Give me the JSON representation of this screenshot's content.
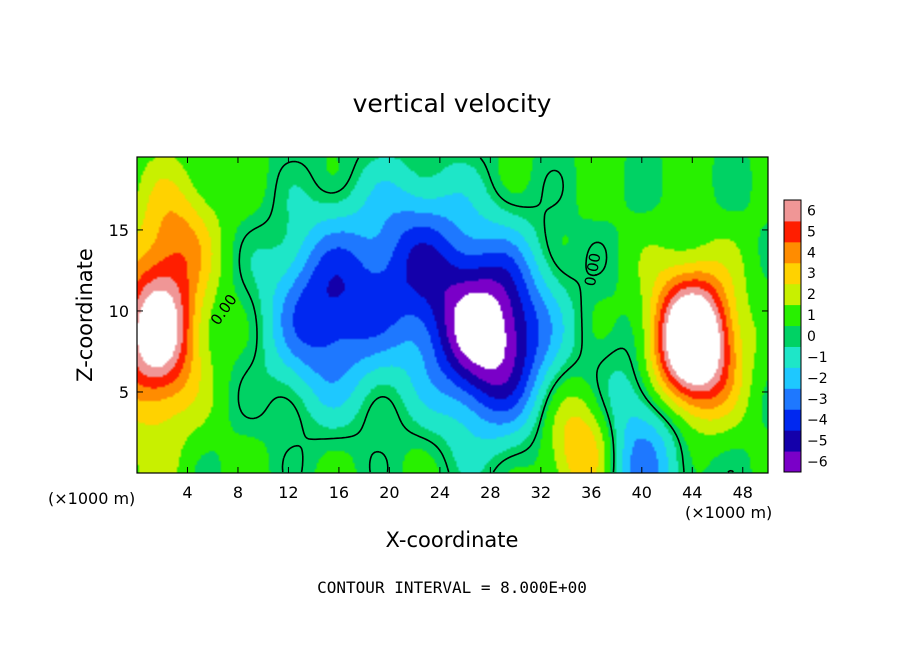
{
  "chart_data": {
    "type": "heatmap",
    "title": "vertical velocity",
    "xlabel": "X-coordinate",
    "ylabel": "Z-coordinate",
    "x_unit": "(×1000 m)",
    "x_unit_right": "(×1000 m)",
    "footer": "CONTOUR INTERVAL = 8.000E+00",
    "xlim": [
      0,
      50
    ],
    "ylim": [
      0,
      19.5
    ],
    "x_ticks": [
      "4",
      "8",
      "12",
      "16",
      "20",
      "24",
      "28",
      "32",
      "36",
      "40",
      "44",
      "48"
    ],
    "y_ticks": [
      "5",
      "10",
      "15"
    ],
    "colorbar": {
      "min": -6,
      "max": 6,
      "ticks": [
        "6",
        "5",
        "4",
        "3",
        "2",
        "1",
        "0",
        "−1",
        "−2",
        "−3",
        "−4",
        "−5",
        "−6"
      ],
      "colors": [
        "#7a00c8",
        "#1400aa",
        "#0028f0",
        "#1e78ff",
        "#1ec8ff",
        "#1ee6c8",
        "#00d264",
        "#28f000",
        "#c8f000",
        "#ffd200",
        "#ff8c00",
        "#ff1e00",
        "#f09696"
      ],
      "above_max_color": "#ffffff"
    },
    "contour_labels": [
      "0.00",
      "0.00"
    ],
    "features": [
      {
        "type": "updraft",
        "x": 1.5,
        "z": 8.5,
        "value": 7
      },
      {
        "type": "updraft",
        "x": 3.0,
        "z": 14.5,
        "value": 3
      },
      {
        "type": "updraft",
        "x": 44.0,
        "z": 8.0,
        "value": 10
      },
      {
        "type": "updraft",
        "x": 35.8,
        "z": 1.6,
        "value": 6
      },
      {
        "type": "updraft",
        "x": 1.5,
        "z": 2.0,
        "value": 1
      },
      {
        "type": "downdraft",
        "x": 15.0,
        "z": 10.0,
        "value": -5
      },
      {
        "type": "downdraft",
        "x": 22.0,
        "z": 13.0,
        "value": -4
      },
      {
        "type": "downdraft",
        "x": 28.0,
        "z": 8.5,
        "value": -8
      },
      {
        "type": "downdraft",
        "x": 38.5,
        "z": 1.5,
        "value": -5
      }
    ]
  }
}
